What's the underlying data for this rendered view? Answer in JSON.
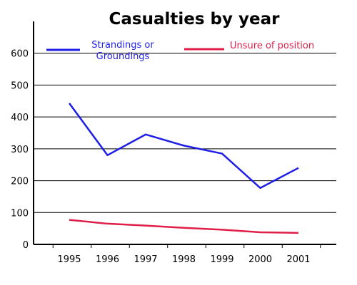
{
  "chart_data": {
    "type": "line",
    "title": "Casualties by year",
    "xlabel": "",
    "ylabel": "",
    "x": [
      "1995",
      "1996",
      "1997",
      "1998",
      "1999",
      "2000",
      "2001"
    ],
    "ylim": [
      0,
      700
    ],
    "yticks": [
      0,
      100,
      200,
      300,
      400,
      500,
      600
    ],
    "grid": "horizontal",
    "legend_position": "top",
    "series": [
      {
        "name_lines": [
          "Strandings or",
          "Groundings"
        ],
        "color": "#1e1ee6",
        "values": [
          443,
          280,
          345,
          310,
          285,
          177,
          240
        ]
      },
      {
        "name_lines": [
          "Unsure of position"
        ],
        "color": "#e01e48",
        "values": [
          77,
          65,
          59,
          52,
          46,
          38,
          36
        ]
      }
    ]
  }
}
